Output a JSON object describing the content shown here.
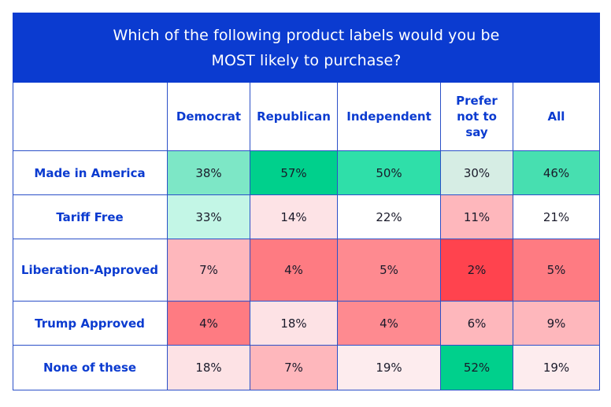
{
  "title": "Which of the following product labels would you be MOST likely to purchase?",
  "chart_data": {
    "type": "heatmap",
    "title": "Which of the following product labels would you be MOST likely to purchase?",
    "columns": [
      "Democrat",
      "Republican",
      "Independent",
      "Prefer not to say",
      "All"
    ],
    "rows": [
      {
        "label": "Made in America",
        "values": [
          "38%",
          "57%",
          "50%",
          "30%",
          "46%"
        ]
      },
      {
        "label": "Tariff Free",
        "values": [
          "33%",
          "14%",
          "22%",
          "11%",
          "21%"
        ]
      },
      {
        "label": "Liberation-Approved",
        "values": [
          "7%",
          "4%",
          "5%",
          "2%",
          "5%"
        ]
      },
      {
        "label": "Trump Approved",
        "values": [
          "4%",
          "18%",
          "4%",
          "6%",
          "9%"
        ]
      },
      {
        "label": "None of these",
        "values": [
          "18%",
          "7%",
          "19%",
          "52%",
          "19%"
        ]
      }
    ],
    "cell_colors": [
      [
        "#7de7c6",
        "#00d08c",
        "#2fdfa9",
        "#d6ede4",
        "#47dfb0"
      ],
      [
        "#c3f6e6",
        "#fde3e6",
        "#ffffff",
        "#feb7bc",
        "#ffffff"
      ],
      [
        "#feb7bc",
        "#fe7b82",
        "#fe8a90",
        "#ff434e",
        "#fe7b82"
      ],
      [
        "#fe7b82",
        "#fde2e5",
        "#fe8a90",
        "#feb7bc",
        "#feb7bc"
      ],
      [
        "#fde2e5",
        "#feb7bc",
        "#fdecee",
        "#00d08c",
        "#fdecee"
      ]
    ]
  }
}
